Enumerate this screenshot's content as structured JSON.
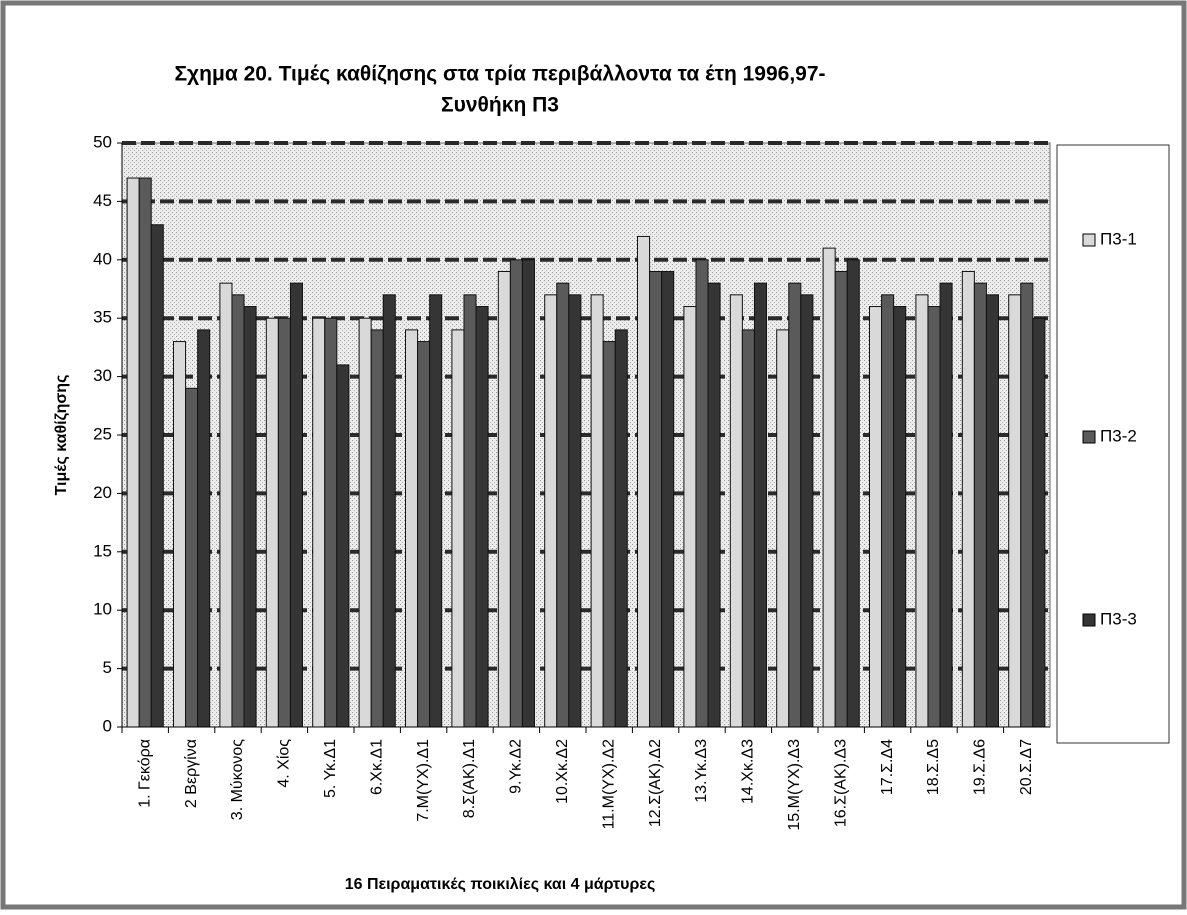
{
  "chart_data": {
    "type": "bar",
    "title": [
      "Σχημα  20. Τιμές καθίζησης στα τρία περιβάλλοντα  τα έτη 1996,97-",
      "Συνθήκη Π3"
    ],
    "x_label": "16 Πειραματικές ποικιλίες και 4 μάρτυρες",
    "y_label": "Τιμές καθίζησης",
    "categories": [
      "1. Γεκόρα",
      "2 Βεργίνα",
      "3. Μύκονος",
      "4. Χίος",
      "5. Υκ.Δ1",
      "6.Χκ.Δ1",
      "7.Μ(ΥΧ).Δ1",
      "8.Σ(ΑΚ).Δ1",
      "9.Υκ.Δ2",
      "10.Χκ.Δ2",
      "11.Μ(ΥΧ).Δ2",
      "12.Σ(ΑΚ).Δ2",
      "13.Υκ.Δ3",
      "14.Χκ.Δ3",
      "15.Μ(ΥΧ).Δ3",
      "16.Σ(ΑΚ).Δ3",
      "17.Σ.Δ4",
      "18.Σ.Δ5",
      "19.Σ.Δ6",
      "20.Σ.Δ7"
    ],
    "series": [
      {
        "name": "Π3-1",
        "color": "#d9d9d9",
        "values": [
          47,
          33,
          38,
          35,
          35,
          35,
          34,
          34,
          39,
          37,
          37,
          42,
          36,
          37,
          34,
          41,
          36,
          37,
          39,
          37
        ]
      },
      {
        "name": "Π3-2",
        "color": "#5a5a5a",
        "values": [
          47,
          29,
          37,
          35,
          35,
          34,
          33,
          37,
          40,
          38,
          33,
          39,
          40,
          34,
          38,
          39,
          37,
          36,
          38,
          38
        ]
      },
      {
        "name": "Π3-3",
        "color": "#353535",
        "values": [
          43,
          34,
          36,
          38,
          31,
          37,
          37,
          36,
          40,
          37,
          34,
          39,
          38,
          38,
          37,
          40,
          36,
          38,
          37,
          35
        ]
      }
    ],
    "ylim": [
      0,
      50
    ],
    "yticks": [
      0,
      5,
      10,
      15,
      20,
      25,
      30,
      35,
      40,
      45,
      50
    ],
    "grid": true,
    "legend": "right"
  }
}
